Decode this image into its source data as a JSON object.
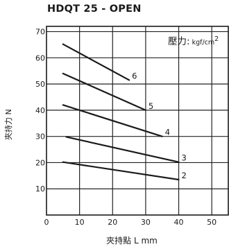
{
  "chart_data": {
    "type": "line",
    "title": "HDQT 25 - OPEN",
    "xlabel": "夾持點 L mm",
    "ylabel": "夾持力 N",
    "xlim": [
      0,
      55
    ],
    "ylim": [
      0,
      72
    ],
    "xticks": [
      0,
      10,
      20,
      30,
      40,
      50
    ],
    "yticks": [
      10,
      20,
      30,
      40,
      50,
      60,
      70
    ],
    "grid": true,
    "legend_title": "壓力:",
    "legend_unit": "kgf/cm",
    "legend_unit_sup": "2",
    "series": [
      {
        "name": "2",
        "points": [
          [
            5,
            20.2
          ],
          [
            40,
            13.5
          ]
        ]
      },
      {
        "name": "3",
        "points": [
          [
            6,
            29.8
          ],
          [
            40,
            20.2
          ]
        ]
      },
      {
        "name": "4",
        "points": [
          [
            5,
            42
          ],
          [
            35,
            30
          ]
        ]
      },
      {
        "name": "5",
        "points": [
          [
            5,
            54
          ],
          [
            30,
            40
          ]
        ]
      },
      {
        "name": "6",
        "points": [
          [
            5,
            65.2
          ],
          [
            25,
            51.5
          ]
        ]
      }
    ]
  }
}
